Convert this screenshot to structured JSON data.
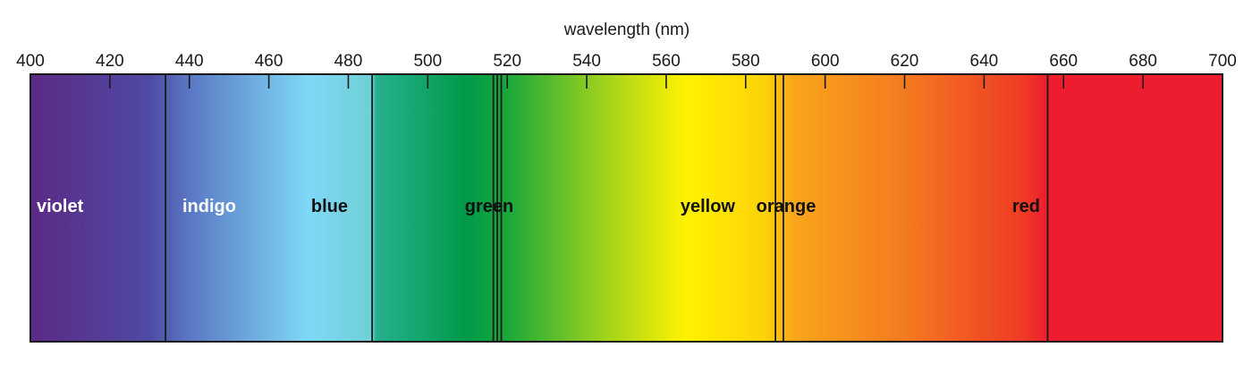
{
  "axis": {
    "label": "wavelength (nm)",
    "min": 400,
    "max": 700,
    "ticks": [
      400,
      420,
      440,
      460,
      480,
      500,
      520,
      540,
      560,
      580,
      600,
      620,
      640,
      660,
      680,
      700
    ]
  },
  "bands": [
    {
      "label": "violet",
      "start": 400,
      "end": 434,
      "label_color": "#ffffff"
    },
    {
      "label": "indigo",
      "start": 434,
      "end": 486,
      "label_color": "#ffffff"
    },
    {
      "label": "blue",
      "start": 486,
      "end": 486,
      "label_color": "#111111"
    },
    {
      "label": "green",
      "start": 486,
      "end": 518,
      "label_color": "#111111"
    },
    {
      "label": "yellow",
      "start": 518,
      "end": 588,
      "label_color": "#111111"
    },
    {
      "label": "orange",
      "start": 588,
      "end": 656,
      "label_color": "#111111"
    },
    {
      "label": "red",
      "start": 656,
      "end": 700,
      "label_color": "#111111"
    }
  ],
  "boundaries": [
    434,
    486,
    516.5,
    517.5,
    518.5,
    587.5,
    589.5,
    656
  ],
  "spectrum_colors": {
    "400": "#5b2a86",
    "430": "#4f4aa3",
    "440": "#5a78c4",
    "470": "#7fd8f6",
    "486": "#6fcfd6",
    "487": "#26b08e",
    "510": "#009a48",
    "520": "#1aa83a",
    "545": "#a3d31c",
    "565": "#fff200",
    "585": "#fdd20a",
    "592": "#f9a61b",
    "620": "#f47a20",
    "650": "#ef3a24",
    "656": "#ed1c2e",
    "700": "#ed1c2e"
  }
}
